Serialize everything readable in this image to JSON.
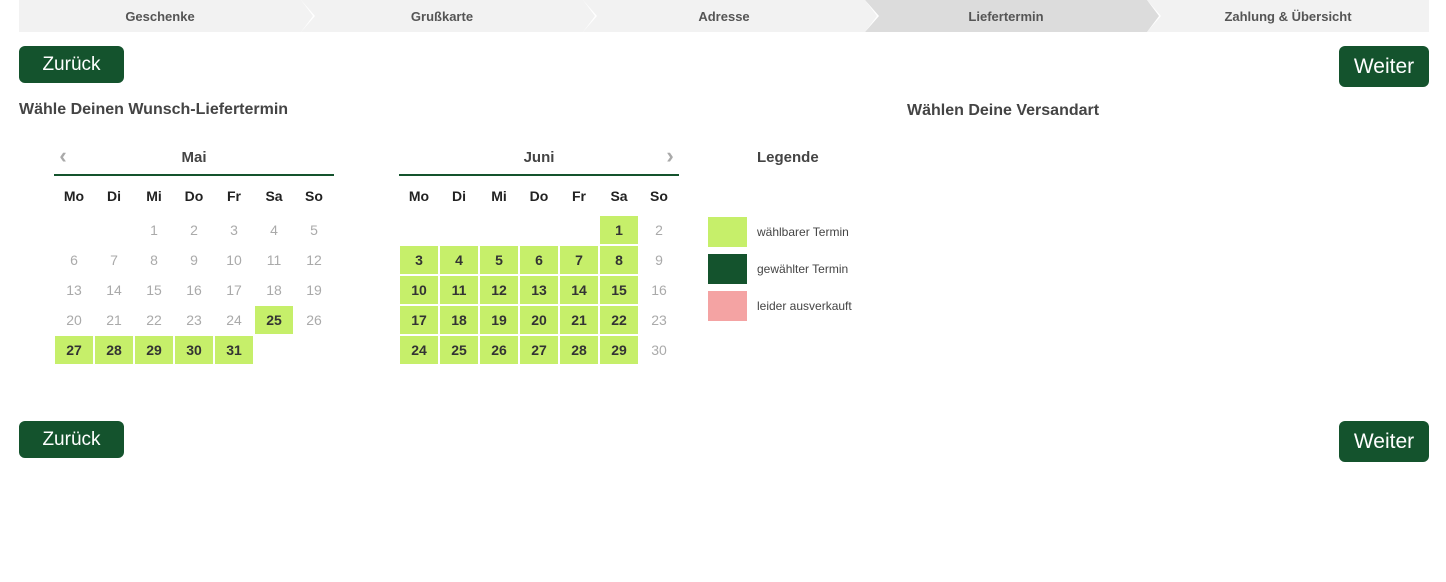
{
  "steps": [
    {
      "label": "Geschenke",
      "active": false
    },
    {
      "label": "Grußkarte",
      "active": false
    },
    {
      "label": "Adresse",
      "active": false
    },
    {
      "label": "Liefertermin",
      "active": true
    },
    {
      "label": "Zahlung & Übersicht",
      "active": false
    }
  ],
  "buttons": {
    "back": "Zurück",
    "next": "Weiter"
  },
  "headings": {
    "date": "Wähle Deinen Wunsch-Liefertermin",
    "shipping": "Wählen Deine Versandart"
  },
  "weekdays": [
    "Mo",
    "Di",
    "Mi",
    "Do",
    "Fr",
    "Sa",
    "So"
  ],
  "calendars": [
    {
      "month": "Mai",
      "offset": 2,
      "days": 31,
      "available": [
        25,
        27,
        28,
        29,
        30,
        31
      ]
    },
    {
      "month": "Juni",
      "offset": 5,
      "days": 30,
      "available": [
        1,
        3,
        4,
        5,
        6,
        7,
        8,
        10,
        11,
        12,
        13,
        14,
        15,
        17,
        18,
        19,
        20,
        21,
        22,
        24,
        25,
        26,
        27,
        28,
        29
      ]
    }
  ],
  "legend": {
    "title": "Legende",
    "items": [
      {
        "label": "wählbarer Termin",
        "color": "#c6ef6a"
      },
      {
        "label": "gewählter Termin",
        "color": "#14532d"
      },
      {
        "label": "leider ausverkauft",
        "color": "#f4a3a3"
      }
    ]
  },
  "icons": {
    "prev": "chevron-left-icon",
    "next": "chevron-right-icon"
  }
}
